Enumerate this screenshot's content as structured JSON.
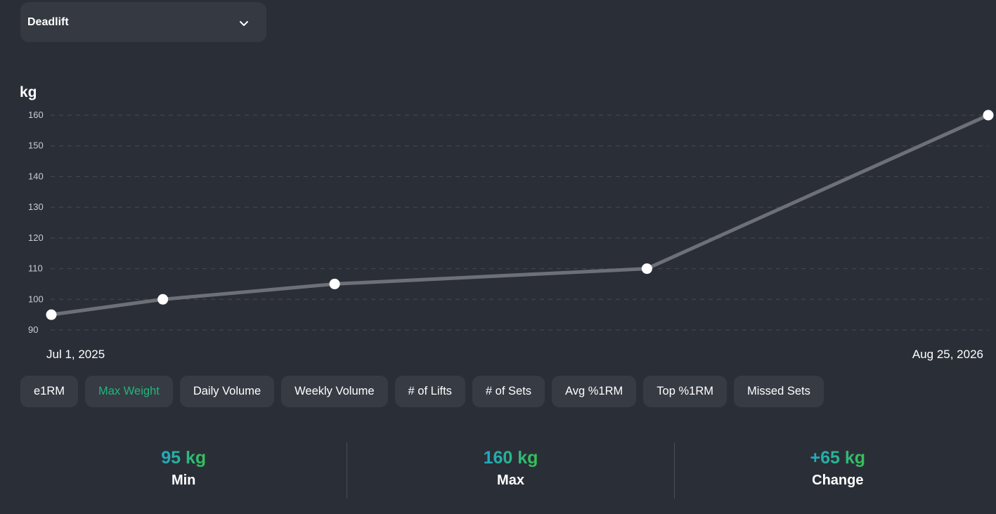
{
  "exercise_selector": {
    "selected": "Deadlift",
    "icon": "chevron-down-icon"
  },
  "chart_data": {
    "type": "line",
    "ylabel": "kg",
    "ylim": [
      90,
      160
    ],
    "yticks": [
      90,
      100,
      110,
      120,
      130,
      140,
      150,
      160
    ],
    "grid": true,
    "x_start_label": "Jul 1, 2025",
    "x_end_label": "Aug 25, 2026",
    "x": [
      "2025-07-01",
      "2025-08-20",
      "2025-11-05",
      "2026-03-25",
      "2026-08-25"
    ],
    "values": [
      95,
      100,
      105,
      110,
      160
    ],
    "line_color": "#6e7077",
    "point_color": "#ffffff"
  },
  "metric_tabs": [
    {
      "label": "e1RM",
      "active": false
    },
    {
      "label": "Max Weight",
      "active": true
    },
    {
      "label": "Daily Volume",
      "active": false
    },
    {
      "label": "Weekly Volume",
      "active": false
    },
    {
      "label": "# of Lifts",
      "active": false
    },
    {
      "label": "# of Sets",
      "active": false
    },
    {
      "label": "Avg %1RM",
      "active": false
    },
    {
      "label": "Top %1RM",
      "active": false
    },
    {
      "label": "Missed Sets",
      "active": false
    }
  ],
  "stats": {
    "min": {
      "value": "95 kg",
      "label": "Min"
    },
    "max": {
      "value": "160 kg",
      "label": "Max"
    },
    "change": {
      "value": "+65 kg",
      "label": "Change"
    }
  },
  "colors": {
    "background": "#2a2f37",
    "active_tab": "#22b578",
    "gradient_start": "#1fa8c6",
    "gradient_end": "#37c254"
  }
}
